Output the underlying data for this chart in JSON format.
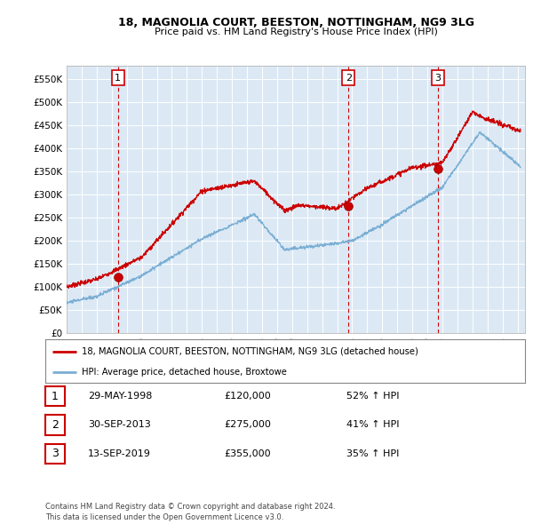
{
  "title": "18, MAGNOLIA COURT, BEESTON, NOTTINGHAM, NG9 3LG",
  "subtitle": "Price paid vs. HM Land Registry's House Price Index (HPI)",
  "legend_label_red": "18, MAGNOLIA COURT, BEESTON, NOTTINGHAM, NG9 3LG (detached house)",
  "legend_label_blue": "HPI: Average price, detached house, Broxtowe",
  "footer_line1": "Contains HM Land Registry data © Crown copyright and database right 2024.",
  "footer_line2": "This data is licensed under the Open Government Licence v3.0.",
  "table_rows": [
    {
      "num": "1",
      "date": "29-MAY-1998",
      "price": "£120,000",
      "change": "52% ↑ HPI"
    },
    {
      "num": "2",
      "date": "30-SEP-2013",
      "price": "£275,000",
      "change": "41% ↑ HPI"
    },
    {
      "num": "3",
      "date": "13-SEP-2019",
      "price": "£355,000",
      "change": "35% ↑ HPI"
    }
  ],
  "sale_points": [
    {
      "year": 1998.41,
      "value": 120000,
      "label": "1"
    },
    {
      "year": 2013.75,
      "value": 275000,
      "label": "2"
    },
    {
      "year": 2019.7,
      "value": 355000,
      "label": "3"
    }
  ],
  "vline_years": [
    1998.41,
    2013.75,
    2019.7
  ],
  "ylim": [
    0,
    580000
  ],
  "xlim_start": 1995.0,
  "xlim_end": 2025.5,
  "yticks": [
    0,
    50000,
    100000,
    150000,
    200000,
    250000,
    300000,
    350000,
    400000,
    450000,
    500000,
    550000
  ],
  "ytick_labels": [
    "£0",
    "£50K",
    "£100K",
    "£150K",
    "£200K",
    "£250K",
    "£300K",
    "£350K",
    "£400K",
    "£450K",
    "£500K",
    "£550K"
  ],
  "chart_bg_color": "#dce9f5",
  "background_color": "#ffffff",
  "grid_color": "#ffffff",
  "red_color": "#cc0000",
  "blue_color": "#7bafd4",
  "label_box_colors": [
    "#cc0000",
    "#cc0000",
    "#cc0000"
  ]
}
